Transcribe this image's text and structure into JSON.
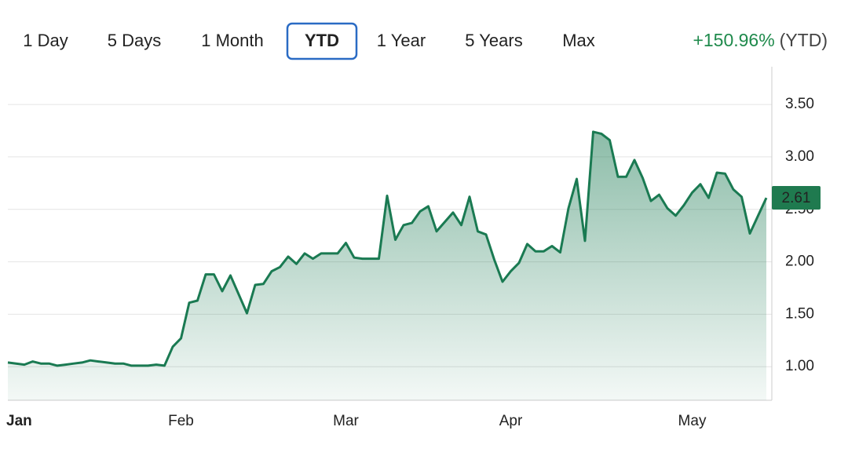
{
  "controls": {
    "ranges": [
      "1 Day",
      "5 Days",
      "1 Month",
      "YTD",
      "1 Year",
      "5 Years",
      "Max"
    ],
    "selected_index": 3,
    "change": "+150.96%",
    "change_period": "(YTD)"
  },
  "chart_data": {
    "type": "area",
    "color": "#1a7a52",
    "values": [
      1.04,
      1.03,
      1.02,
      1.05,
      1.03,
      1.03,
      1.01,
      1.02,
      1.03,
      1.04,
      1.06,
      1.05,
      1.04,
      1.03,
      1.03,
      1.01,
      1.01,
      1.01,
      1.02,
      1.01,
      1.19,
      1.27,
      1.61,
      1.63,
      1.88,
      1.88,
      1.72,
      1.87,
      1.69,
      1.51,
      1.78,
      1.79,
      1.91,
      1.95,
      2.05,
      1.98,
      2.08,
      2.03,
      2.08,
      2.08,
      2.08,
      2.18,
      2.04,
      2.03,
      2.03,
      2.03,
      2.63,
      2.21,
      2.35,
      2.37,
      2.48,
      2.53,
      2.29,
      2.38,
      2.47,
      2.35,
      2.62,
      2.29,
      2.26,
      2.02,
      1.81,
      1.91,
      1.99,
      2.17,
      2.1,
      2.1,
      2.15,
      2.09,
      2.51,
      2.79,
      2.2,
      3.24,
      3.22,
      3.16,
      2.81,
      2.81,
      2.97,
      2.8,
      2.58,
      2.64,
      2.51,
      2.44,
      2.54,
      2.66,
      2.74,
      2.61,
      2.85,
      2.84,
      2.69,
      2.62,
      2.27,
      2.44,
      2.61
    ],
    "xticks": [
      {
        "value": 0,
        "label": "Jan"
      },
      {
        "value": 21,
        "label": "Feb"
      },
      {
        "value": 41,
        "label": "Mar"
      },
      {
        "value": 61,
        "label": "Apr"
      },
      {
        "value": 83,
        "label": "May"
      }
    ],
    "ylim": [
      0.68,
      3.86
    ],
    "yticks": [
      {
        "value": 1,
        "label": "1.00"
      },
      {
        "value": 1.5,
        "label": "1.50"
      },
      {
        "value": 2,
        "label": "2.00"
      },
      {
        "value": 2.5,
        "label": "2.50"
      },
      {
        "value": 3,
        "label": "3.00"
      },
      {
        "value": 3.5,
        "label": "3.50"
      }
    ],
    "grid": true
  }
}
